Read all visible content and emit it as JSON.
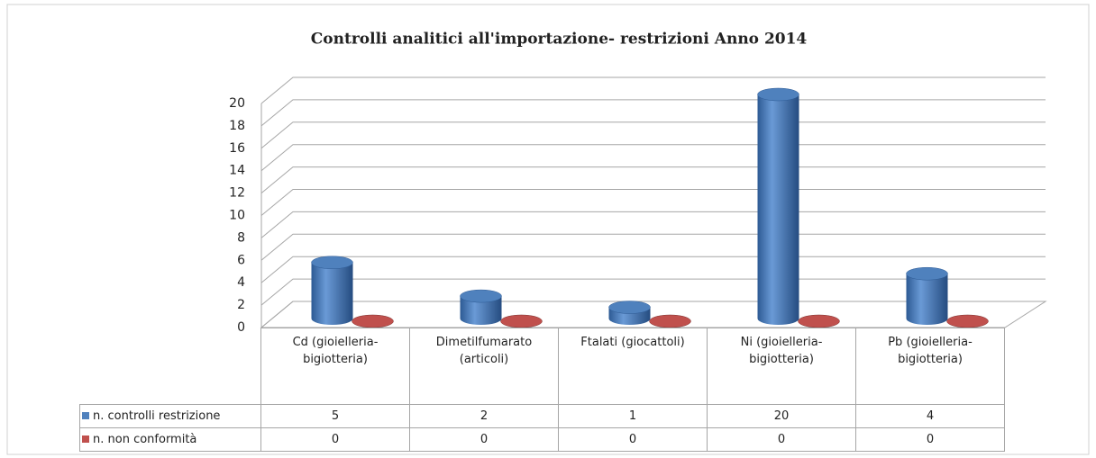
{
  "chart_data": {
    "type": "bar3d",
    "title": "Controlli analitici all'importazione- restrizioni Anno 2014",
    "categories": [
      "Cd (gioielleria-bigiotteria)",
      "Dimetilfumarato (articoli)",
      "Ftalati (giocattoli)",
      "Ni (gioielleria-bigiotteria)",
      "Pb (gioielleria-bigiotteria)"
    ],
    "series": [
      {
        "name": "n. controlli restrizione",
        "color": "#4f81bd",
        "values": [
          5,
          2,
          1,
          20,
          4
        ]
      },
      {
        "name": "n. non conformità",
        "color": "#c0504d",
        "values": [
          0,
          0,
          0,
          0,
          0
        ]
      }
    ],
    "ylim": [
      0,
      20
    ],
    "yticks": [
      0,
      2,
      4,
      6,
      8,
      10,
      12,
      14,
      16,
      18,
      20
    ],
    "grid": true,
    "data_table": true
  }
}
